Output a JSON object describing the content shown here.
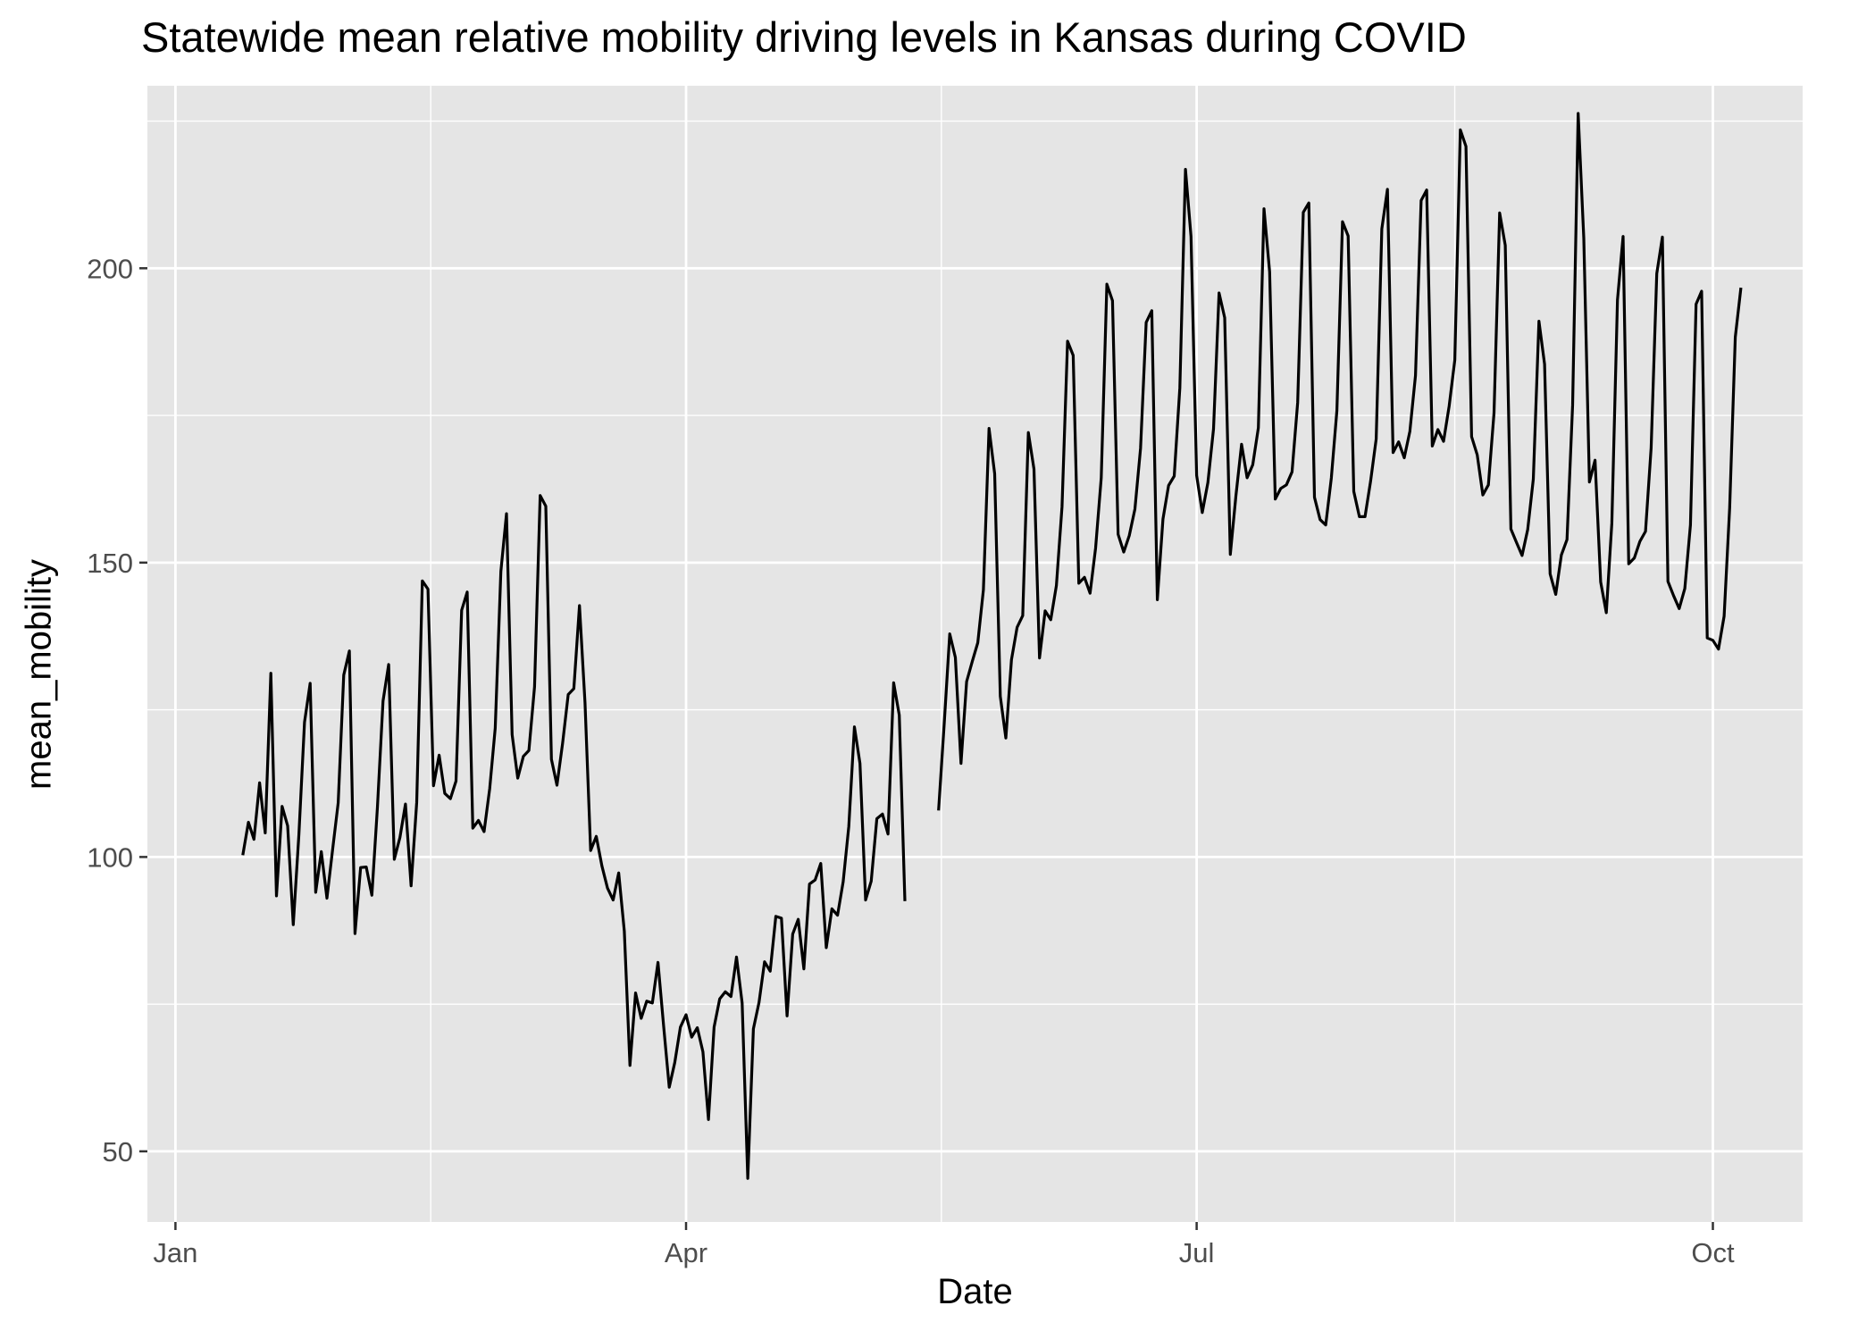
{
  "chart_data": {
    "type": "line",
    "title": "Statewide mean relative mobility driving levels in Kansas during COVID",
    "xlabel": "Date",
    "ylabel": "mean_mobility",
    "x_ticks": [
      {
        "label": "Jan",
        "date": "2020-01-01"
      },
      {
        "label": "Apr",
        "date": "2020-04-01"
      },
      {
        "label": "Jul",
        "date": "2020-07-01"
      },
      {
        "label": "Oct",
        "date": "2020-10-01"
      }
    ],
    "y_ticks": [
      50,
      100,
      150,
      200
    ],
    "xlim": [
      "2019-12-27",
      "2020-10-17"
    ],
    "ylim": [
      38,
      231
    ],
    "grid": true,
    "colors": {
      "panel": "#E5E5E5",
      "grid": "#FFFFFF",
      "line": "#000000",
      "tick_text": "#4D4D4D"
    },
    "series": [
      {
        "start_date": "2020-01-13",
        "values": [
          100.3,
          105.9,
          103.0,
          112.6,
          104.1,
          131.2,
          93.4,
          108.6,
          105.3,
          88.5,
          103.8,
          122.9,
          129.5,
          94.0,
          100.9,
          93.0,
          101.2,
          109.2,
          130.9,
          135.0,
          87.0,
          98.2,
          98.3,
          93.5,
          108.4,
          126.5,
          132.7,
          99.6,
          103.3,
          109.0,
          95.1,
          109.3,
          146.9,
          145.5,
          112.1,
          117.3,
          110.8,
          109.9,
          112.9,
          141.9,
          145.0,
          104.9,
          106.2,
          104.3,
          111.6,
          121.9,
          148.5,
          158.3,
          120.8,
          113.4,
          117.1,
          118.1,
          128.9,
          161.4,
          159.6,
          116.6,
          112.2,
          119.3,
          127.6,
          128.6,
          142.7,
          126.2,
          101.1,
          103.5,
          98.5,
          94.7,
          92.7,
          97.3,
          87.4,
          64.6,
          76.9,
          72.6,
          75.5,
          75.2,
          82.1,
          71.3,
          60.9,
          65.1,
          71.1,
          73.2,
          69.4,
          71.0,
          66.9,
          55.4,
          71.1,
          75.9,
          77.1,
          76.3,
          83.0,
          75.2,
          45.4,
          70.8,
          75.3,
          82.2,
          80.6,
          89.9,
          89.6,
          73.0,
          86.9,
          89.4,
          81.0,
          95.4,
          96.1,
          98.9,
          84.6,
          91.2,
          90.1,
          95.8,
          105.2,
          122.1,
          115.9,
          92.7,
          95.9,
          106.5,
          107.3,
          103.9,
          129.6,
          124.1,
          92.5
        ]
      },
      {
        "start_date": "2020-05-16",
        "values": [
          107.9,
          122.6,
          137.9,
          133.9,
          115.9,
          129.8,
          133.2,
          136.4,
          145.4,
          172.8,
          165.1,
          127.3,
          120.2,
          133.5,
          139.0,
          141.0,
          172.1,
          165.9,
          133.8,
          141.8,
          140.3,
          146.1,
          159.5,
          187.6,
          185.2,
          146.5,
          147.5,
          144.8,
          152.5,
          164.4,
          197.3,
          194.5,
          154.8,
          151.8,
          154.6,
          159.1,
          169.4,
          190.8,
          192.8,
          143.7,
          157.4,
          163.1,
          164.7,
          179.7,
          216.8,
          205.4,
          164.8,
          158.5,
          163.6,
          172.7,
          195.8,
          191.6,
          151.4,
          161.4,
          170.1,
          164.4,
          166.6,
          172.9,
          210.1,
          199.4,
          160.8,
          162.6,
          163.2,
          165.4,
          177.2,
          209.5,
          211.1,
          161.1,
          157.3,
          156.4,
          164.4,
          175.8,
          207.9,
          205.5,
          162.1,
          157.8,
          157.8,
          163.8,
          171.0,
          206.7,
          213.4,
          168.7,
          170.5,
          167.8,
          172.3,
          181.8,
          211.5,
          213.3,
          169.8,
          172.6,
          170.6,
          176.6,
          184.4,
          223.5,
          220.7,
          171.4,
          168.3,
          161.5,
          163.2,
          175.4,
          209.4,
          203.9,
          155.7,
          153.4,
          151.2,
          155.6,
          164.2,
          191.0,
          183.7,
          148.1,
          144.6,
          151.3,
          153.9,
          176.8,
          226.3,
          205.1,
          163.7,
          167.4,
          146.7,
          141.5,
          156.7,
          194.6,
          205.4,
          149.8,
          150.8,
          153.6,
          155.3,
          169.5,
          199.1,
          205.3,
          146.8,
          144.4,
          142.2,
          145.6,
          156.4,
          193.9,
          196.1,
          137.2,
          136.8,
          135.3,
          140.9,
          159.3,
          188.3,
          196.7
        ]
      }
    ]
  }
}
